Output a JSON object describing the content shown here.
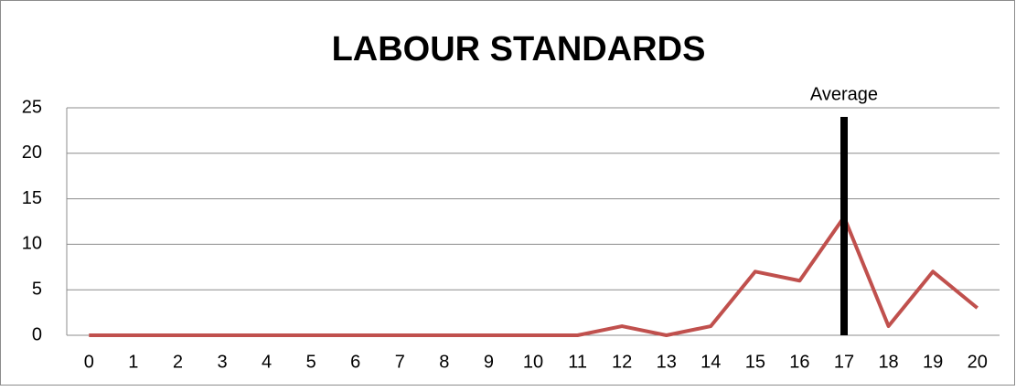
{
  "chart_data": {
    "type": "line",
    "title": "LABOUR STANDARDS",
    "x": [
      0,
      1,
      2,
      3,
      4,
      5,
      6,
      7,
      8,
      9,
      10,
      11,
      12,
      13,
      14,
      15,
      16,
      17,
      18,
      19,
      20
    ],
    "values": [
      0,
      0,
      0,
      0,
      0,
      0,
      0,
      0,
      0,
      0,
      0,
      0,
      1,
      0,
      1,
      7,
      6,
      13,
      1,
      7,
      3
    ],
    "color": "#c0504d",
    "xlim": [
      -0.5,
      20.5
    ],
    "xticks": [
      0,
      1,
      2,
      3,
      4,
      5,
      6,
      7,
      8,
      9,
      10,
      11,
      12,
      13,
      14,
      15,
      16,
      17,
      18,
      19,
      20
    ],
    "ylim": [
      0,
      25
    ],
    "yticks": [
      0,
      5,
      10,
      15,
      20,
      25
    ],
    "grid": true,
    "annotation": {
      "text": "Average",
      "x": 17,
      "y": 24,
      "color": "#000000"
    }
  }
}
